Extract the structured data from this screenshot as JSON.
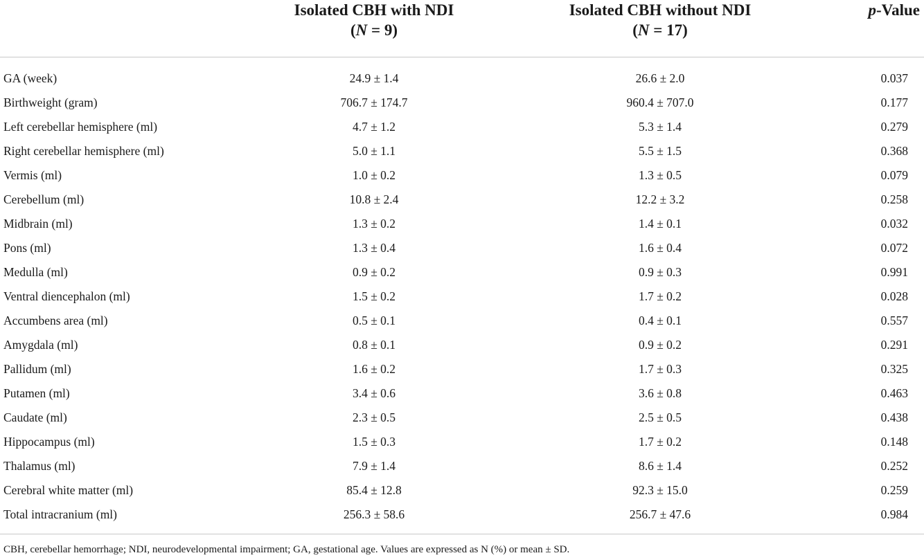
{
  "header": {
    "col1_line1": "Isolated CBH with NDI",
    "col1_line2_prefix": "(",
    "col1_n_symbol": "N",
    "col1_line2_suffix": " = 9)",
    "col2_line1": "Isolated CBH without NDI",
    "col2_line2_prefix": "(",
    "col2_n_symbol": "N",
    "col2_line2_suffix": " = 17)",
    "col3_p": "p",
    "col3_suffix": "-Value"
  },
  "rows": [
    {
      "label": "GA (week)",
      "with_ndi": "24.9 ± 1.4",
      "without_ndi": "26.6 ± 2.0",
      "p": "0.037"
    },
    {
      "label": "Birthweight (gram)",
      "with_ndi": "706.7 ± 174.7",
      "without_ndi": "960.4 ± 707.0",
      "p": "0.177"
    },
    {
      "label": "Left cerebellar hemisphere (ml)",
      "with_ndi": "4.7 ± 1.2",
      "without_ndi": "5.3 ± 1.4",
      "p": "0.279"
    },
    {
      "label": "Right cerebellar hemisphere (ml)",
      "with_ndi": "5.0 ± 1.1",
      "without_ndi": "5.5 ± 1.5",
      "p": "0.368"
    },
    {
      "label": "Vermis (ml)",
      "with_ndi": "1.0 ± 0.2",
      "without_ndi": "1.3 ± 0.5",
      "p": "0.079"
    },
    {
      "label": "Cerebellum (ml)",
      "with_ndi": "10.8 ± 2.4",
      "without_ndi": "12.2 ± 3.2",
      "p": "0.258"
    },
    {
      "label": "Midbrain (ml)",
      "with_ndi": "1.3 ± 0.2",
      "without_ndi": "1.4 ± 0.1",
      "p": "0.032"
    },
    {
      "label": "Pons (ml)",
      "with_ndi": "1.3 ± 0.4",
      "without_ndi": "1.6 ± 0.4",
      "p": "0.072"
    },
    {
      "label": "Medulla (ml)",
      "with_ndi": "0.9 ± 0.2",
      "without_ndi": "0.9 ± 0.3",
      "p": "0.991"
    },
    {
      "label": "Ventral diencephalon (ml)",
      "with_ndi": "1.5 ± 0.2",
      "without_ndi": "1.7 ± 0.2",
      "p": "0.028"
    },
    {
      "label": "Accumbens area (ml)",
      "with_ndi": "0.5 ± 0.1",
      "without_ndi": "0.4 ± 0.1",
      "p": "0.557"
    },
    {
      "label": "Amygdala (ml)",
      "with_ndi": "0.8 ± 0.1",
      "without_ndi": "0.9 ± 0.2",
      "p": "0.291"
    },
    {
      "label": "Pallidum (ml)",
      "with_ndi": "1.6 ± 0.2",
      "without_ndi": "1.7 ± 0.3",
      "p": "0.325"
    },
    {
      "label": "Putamen (ml)",
      "with_ndi": "3.4 ± 0.6",
      "without_ndi": "3.6 ± 0.8",
      "p": "0.463"
    },
    {
      "label": "Caudate (ml)",
      "with_ndi": "2.3 ± 0.5",
      "without_ndi": "2.5 ± 0.5",
      "p": "0.438"
    },
    {
      "label": "Hippocampus (ml)",
      "with_ndi": "1.5 ± 0.3",
      "without_ndi": "1.7 ± 0.2",
      "p": "0.148"
    },
    {
      "label": "Thalamus (ml)",
      "with_ndi": "7.9 ± 1.4",
      "without_ndi": "8.6 ± 1.4",
      "p": "0.252"
    },
    {
      "label": "Cerebral white matter (ml)",
      "with_ndi": "85.4 ± 12.8",
      "without_ndi": "92.3 ± 15.0",
      "p": "0.259"
    },
    {
      "label": "Total intracranium (ml)",
      "with_ndi": "256.3 ± 58.6",
      "without_ndi": "256.7 ± 47.6",
      "p": "0.984"
    }
  ],
  "footnote": "CBH, cerebellar hemorrhage; NDI, neurodevelopmental impairment; GA, gestational age. Values are expressed as N (%) or mean ± SD."
}
